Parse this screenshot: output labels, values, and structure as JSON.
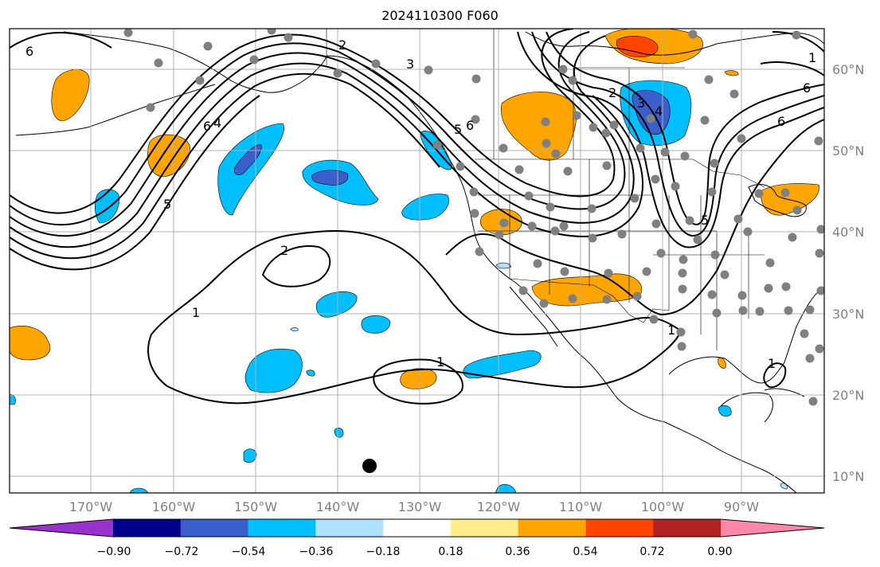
{
  "title": "2024110300 F060",
  "lon_labels": [
    "170°W",
    "160°W",
    "150°W",
    "140°W",
    "130°W",
    "120°W",
    "110°W",
    "100°W",
    "90°W"
  ],
  "lat_labels": [
    "60°N",
    "50°N",
    "40°N",
    "30°N",
    "20°N",
    "10°N"
  ],
  "colorbar": {
    "colors": [
      "#9932cc",
      "#00008b",
      "#3a5fcd",
      "#00bfff",
      "#b0e2ff",
      "#ffffff",
      "#ffec8b",
      "#ffa500",
      "#ff4500",
      "#b22222",
      "#ff88aa"
    ],
    "tick_labels": [
      "−0.90",
      "−0.72",
      "−0.54",
      "−0.36",
      "−0.18",
      "0.18",
      "0.36",
      "0.54",
      "0.72",
      "0.90"
    ]
  },
  "contour_labels": [
    "6",
    "6",
    "4",
    "5",
    "2",
    "1",
    "1",
    "1",
    "2",
    "3",
    "5",
    "6",
    "2",
    "3",
    "4",
    "5",
    "6",
    "6",
    "1",
    "1"
  ],
  "colors": {
    "orange": "#ffa500",
    "cyan": "#00bfff",
    "royal_blue": "#3a5fcd",
    "light_blue": "#b0e2ff",
    "red_orange": "#ff4500",
    "grid": "#b0b0b0",
    "station_dot": "#808080"
  }
}
